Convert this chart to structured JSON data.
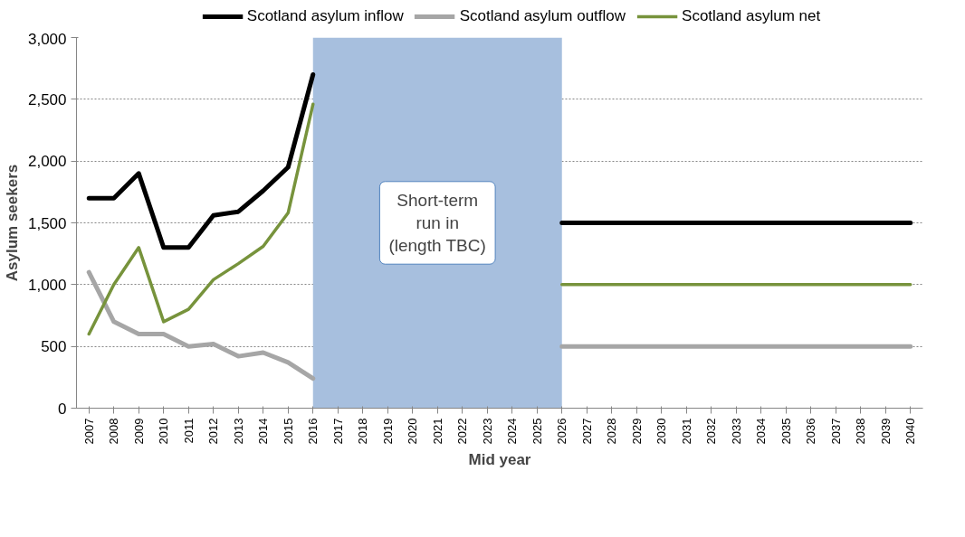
{
  "chart_data": {
    "type": "line",
    "xlabel": "Mid year",
    "ylabel": "Asylum seekers",
    "categories": [
      "2007",
      "2008",
      "2009",
      "2010",
      "2011",
      "2012",
      "2013",
      "2014",
      "2015",
      "2016",
      "2017",
      "2018",
      "2019",
      "2020",
      "2021",
      "2022",
      "2023",
      "2024",
      "2025",
      "2026",
      "2027",
      "2028",
      "2029",
      "2030",
      "2031",
      "2032",
      "2033",
      "2034",
      "2035",
      "2036",
      "2037",
      "2038",
      "2039",
      "2040"
    ],
    "series": [
      {
        "name": "Scotland asylum inflow",
        "color": "#000000",
        "values": [
          1700,
          1700,
          1900,
          1300,
          1300,
          1560,
          1590,
          1760,
          1950,
          2700,
          null,
          null,
          null,
          null,
          null,
          null,
          null,
          null,
          null,
          1500,
          1500,
          1500,
          1500,
          1500,
          1500,
          1500,
          1500,
          1500,
          1500,
          1500,
          1500,
          1500,
          1500,
          1500
        ]
      },
      {
        "name": "Scotland asylum outflow",
        "color": "#a6a6a6",
        "values": [
          1100,
          700,
          600,
          600,
          500,
          520,
          420,
          450,
          370,
          240,
          null,
          null,
          null,
          null,
          null,
          null,
          null,
          null,
          null,
          500,
          500,
          500,
          500,
          500,
          500,
          500,
          500,
          500,
          500,
          500,
          500,
          500,
          500,
          500
        ]
      },
      {
        "name": "Scotland asylum net",
        "color": "#77933c",
        "values": [
          600,
          1000,
          1300,
          700,
          800,
          1040,
          1170,
          1310,
          1580,
          2460,
          null,
          null,
          null,
          null,
          null,
          null,
          null,
          null,
          null,
          1000,
          1000,
          1000,
          1000,
          1000,
          1000,
          1000,
          1000,
          1000,
          1000,
          1000,
          1000,
          1000,
          1000,
          1000
        ]
      }
    ],
    "ylim": [
      0,
      3000
    ],
    "yticks": [
      {
        "value": 0,
        "label": "0"
      },
      {
        "value": 500,
        "label": "500"
      },
      {
        "value": 1000,
        "label": "1,000"
      },
      {
        "value": 1500,
        "label": "1,500"
      },
      {
        "value": 2000,
        "label": "2,000"
      },
      {
        "value": 2500,
        "label": "2,500"
      },
      {
        "value": 3000,
        "label": "3,000"
      }
    ],
    "bands": [
      {
        "axis": "x",
        "from": "2016",
        "to": "2026",
        "label": "Short-term\nrun in\n(length TBC)",
        "color": "#a7bfde"
      }
    ],
    "grid": "y",
    "legend": "top",
    "marker": "none",
    "line_style": "solid"
  }
}
